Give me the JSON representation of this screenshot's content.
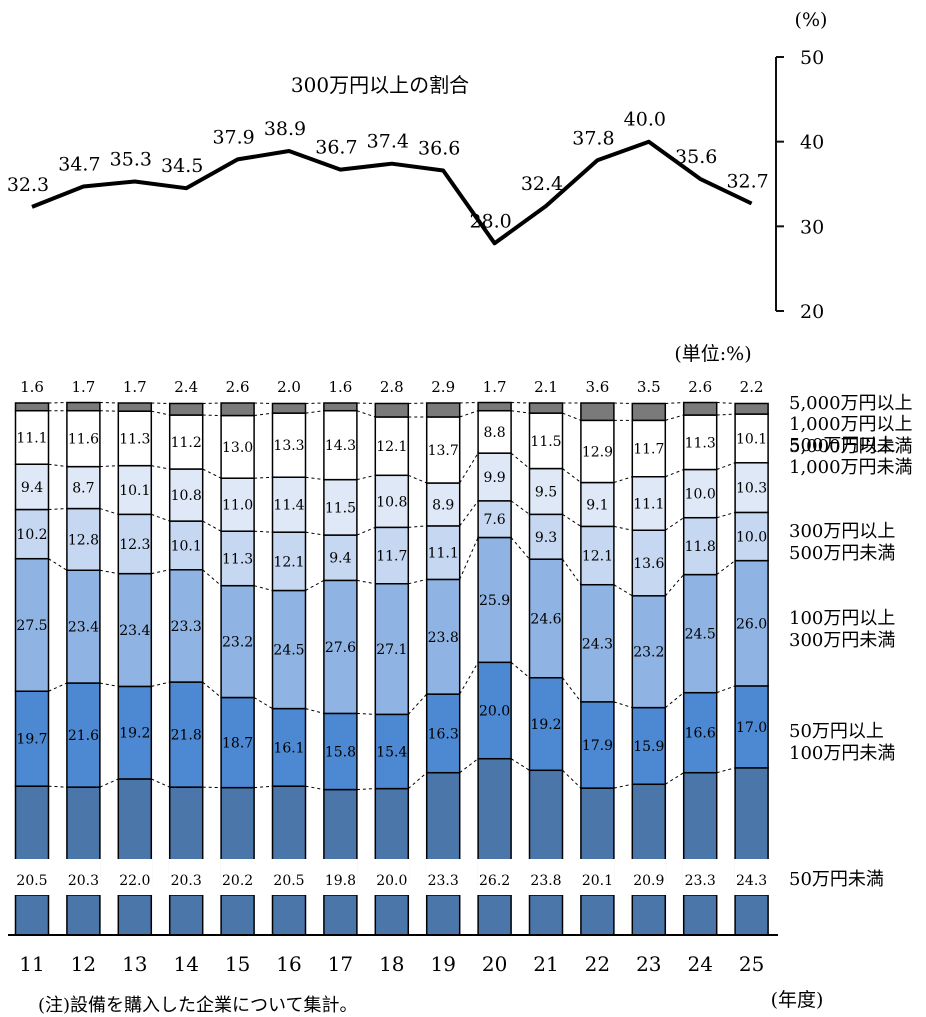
{
  "chart_data": [
    {
      "type": "line",
      "title": "300万円以上の割合",
      "unit": "(%)",
      "yaxis_side": "right",
      "ylim": [
        20,
        50
      ],
      "yticks": [
        "20",
        "30",
        "40",
        "50"
      ],
      "x": [
        "11",
        "12",
        "13",
        "14",
        "15",
        "16",
        "17",
        "18",
        "19",
        "20",
        "21",
        "22",
        "23",
        "24",
        "25"
      ],
      "values": [
        32.3,
        34.7,
        35.3,
        34.5,
        37.9,
        38.9,
        36.7,
        37.4,
        36.6,
        28.0,
        32.4,
        37.8,
        40.0,
        35.6,
        32.7
      ],
      "value_labels": [
        "32.3",
        "34.7",
        "35.3",
        "34.5",
        "37.9",
        "38.9",
        "36.7",
        "37.4",
        "36.6",
        "28.0",
        "32.4",
        "37.8",
        "40.0",
        "35.6",
        "32.7"
      ],
      "grid": false
    },
    {
      "type": "bar",
      "stacked": true,
      "percent": true,
      "unit": "(単位:%)",
      "xlabel": "(年度)",
      "note": "(注)設備を購入した企業について集計。",
      "categories": [
        "11",
        "12",
        "13",
        "14",
        "15",
        "16",
        "17",
        "18",
        "19",
        "20",
        "21",
        "22",
        "23",
        "24",
        "25"
      ],
      "series": [
        {
          "name": "50万円未満",
          "color": "#4a76aa",
          "values": [
            20.5,
            20.3,
            22.0,
            20.3,
            20.2,
            20.5,
            19.8,
            20.0,
            23.3,
            26.2,
            23.8,
            20.1,
            20.9,
            23.3,
            24.3
          ],
          "labels": [
            "20.5",
            "20.3",
            "22.0",
            "20.3",
            "20.2",
            "20.5",
            "19.8",
            "20.0",
            "23.3",
            "26.2",
            "23.8",
            "20.1",
            "20.9",
            "23.3",
            "24.3"
          ]
        },
        {
          "name": "50万円以上\n100万円未満",
          "color": "#4d88d2",
          "values": [
            19.7,
            21.6,
            19.2,
            21.8,
            18.7,
            16.1,
            15.8,
            15.4,
            16.3,
            20.0,
            19.2,
            17.9,
            15.9,
            16.6,
            17.0
          ],
          "labels": [
            "19.7",
            "21.6",
            "19.2",
            "21.8",
            "18.7",
            "16.1",
            "15.8",
            "15.4",
            "16.3",
            "20.0",
            "19.2",
            "17.9",
            "15.9",
            "16.6",
            "17.0"
          ]
        },
        {
          "name": "100万円以上\n300万円未満",
          "color": "#8fb3e3",
          "values": [
            27.5,
            23.4,
            23.4,
            23.3,
            23.2,
            24.5,
            27.6,
            27.1,
            23.8,
            25.9,
            24.6,
            24.3,
            23.2,
            24.5,
            26.0
          ],
          "labels": [
            "27.5",
            "23.4",
            "23.4",
            "23.3",
            "23.2",
            "24.5",
            "27.6",
            "27.1",
            "23.8",
            "25.9",
            "24.6",
            "24.3",
            "23.2",
            "24.5",
            "26.0"
          ]
        },
        {
          "name": "300万円以上\n500万円未満",
          "color": "#c6d8f1",
          "values": [
            10.2,
            12.8,
            12.3,
            10.1,
            11.3,
            12.1,
            9.4,
            11.7,
            11.1,
            7.6,
            9.3,
            12.1,
            13.6,
            11.8,
            10.0
          ],
          "labels": [
            "10.2",
            "12.8",
            "12.3",
            "10.1",
            "11.3",
            "12.1",
            "9.4",
            "11.7",
            "11.1",
            "7.6",
            "9.3",
            "12.1",
            "13.6",
            "11.8",
            "10.0"
          ]
        },
        {
          "name": "500万円以上\n1,000万円未満",
          "color": "#dfe8f6",
          "values": [
            9.4,
            8.7,
            10.1,
            10.8,
            11.0,
            11.4,
            11.5,
            10.8,
            8.9,
            9.9,
            9.5,
            9.1,
            11.1,
            10.0,
            10.3
          ],
          "labels": [
            "9.4",
            "8.7",
            "10.1",
            "10.8",
            "11.0",
            "11.4",
            "11.5",
            "10.8",
            "8.9",
            "9.9",
            "9.5",
            "9.1",
            "11.1",
            "10.0",
            "10.3"
          ]
        },
        {
          "name": "1,000万円以上\n5,000万円未満",
          "color": "#ffffff",
          "values": [
            11.1,
            11.6,
            11.3,
            11.2,
            13.0,
            13.3,
            14.3,
            12.1,
            13.7,
            8.8,
            11.5,
            12.9,
            11.7,
            11.3,
            10.1
          ],
          "labels": [
            "11.1",
            "11.6",
            "11.3",
            "11.2",
            "13.0",
            "13.3",
            "14.3",
            "12.1",
            "13.7",
            "8.8",
            "11.5",
            "12.9",
            "11.7",
            "11.3",
            "10.1"
          ]
        },
        {
          "name": "5,000万円以上",
          "color": "#7a7a7a",
          "values": [
            1.6,
            1.7,
            1.7,
            2.4,
            2.6,
            2.0,
            1.6,
            2.8,
            2.9,
            1.7,
            2.1,
            3.6,
            3.5,
            2.6,
            2.2
          ],
          "labels": [
            "1.6",
            "1.7",
            "1.7",
            "2.4",
            "2.6",
            "2.0",
            "1.6",
            "2.8",
            "2.9",
            "1.7",
            "2.1",
            "3.6",
            "3.5",
            "2.6",
            "2.2"
          ]
        }
      ]
    }
  ]
}
